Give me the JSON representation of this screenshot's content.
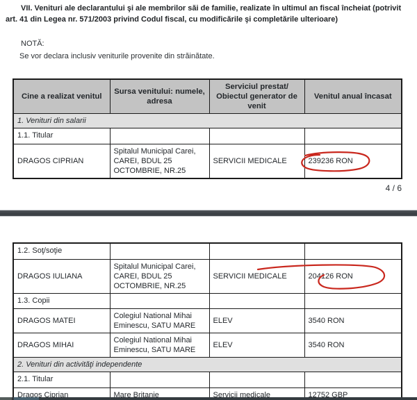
{
  "document": {
    "heading": "VII. Venituri ale declarantului şi ale membrilor săi de familie, realizate în ultimul an fiscal încheiat (potrivit art. 41 din Legea nr. 571/2003 privind Codul fiscal, cu modificările şi completările ulterioare)",
    "note_label": "NOTĂ:",
    "note_text": "Se vor declara inclusiv veniturile provenite din străinătate.",
    "page_indicator": "4 / 6"
  },
  "table": {
    "headers": [
      "Cine a realizat venitul",
      "Sursa venitului: numele, adresa",
      "Serviciul prestat/ Obiectul generator de venit",
      "Venitul anual încasat"
    ]
  },
  "page4_rows": [
    {
      "type": "section",
      "label": "1. Venituri din salarii"
    },
    {
      "type": "row",
      "cells": [
        "1.1. Titular",
        "",
        "",
        ""
      ]
    },
    {
      "type": "row",
      "cells": [
        "DRAGOS CIPRIAN",
        "Spitalul Municipal Carei, CAREI, BDUL 25 OCTOMBRIE, NR.25",
        "SERVICII MEDICALE",
        "239236 RON"
      ],
      "circled": 3
    }
  ],
  "page5_rows": [
    {
      "type": "row",
      "cells": [
        "1.2. Soţ/soţie",
        "",
        "",
        ""
      ]
    },
    {
      "type": "row",
      "cells": [
        "DRAGOS IULIANA",
        "Spitalul Municipal Carei, CAREI, BDUL 25 OCTOMBRIE, NR.25",
        "SERVICII MEDICALE",
        "204126 RON"
      ],
      "circled": 3
    },
    {
      "type": "row",
      "cells": [
        "1.3. Copii",
        "",
        "",
        ""
      ]
    },
    {
      "type": "row",
      "cells": [
        "DRAGOS MATEI",
        "Colegiul National Mihai Eminescu, SATU MARE",
        "ELEV",
        "3540 RON"
      ]
    },
    {
      "type": "row",
      "cells": [
        "DRAGOS MIHAI",
        "Colegiul National Mihai Eminescu, SATU MARE",
        "ELEV",
        "3540 RON"
      ]
    },
    {
      "type": "section",
      "label": "2. Venituri din activităţi independente"
    },
    {
      "type": "row",
      "cells": [
        "2.1. Titular",
        "",
        "",
        ""
      ]
    },
    {
      "type": "row",
      "cells": [
        "Dragos Ciprian",
        "Mare Britanie",
        "Servicii medicale",
        "12752 GBP"
      ]
    },
    {
      "type": "row",
      "cells": [
        "",
        "",
        "",
        ""
      ]
    }
  ],
  "annotation": {
    "circled_values": [
      "239236 RON",
      "204126 RON"
    ],
    "color": "#c9271d"
  },
  "colors": {
    "header_bg": "#c3c3c3",
    "section_bg": "#e0e0e0",
    "table_border": "#1b1b1b",
    "page_separator": "#3f4449",
    "bottom_bar": "#343b40"
  }
}
